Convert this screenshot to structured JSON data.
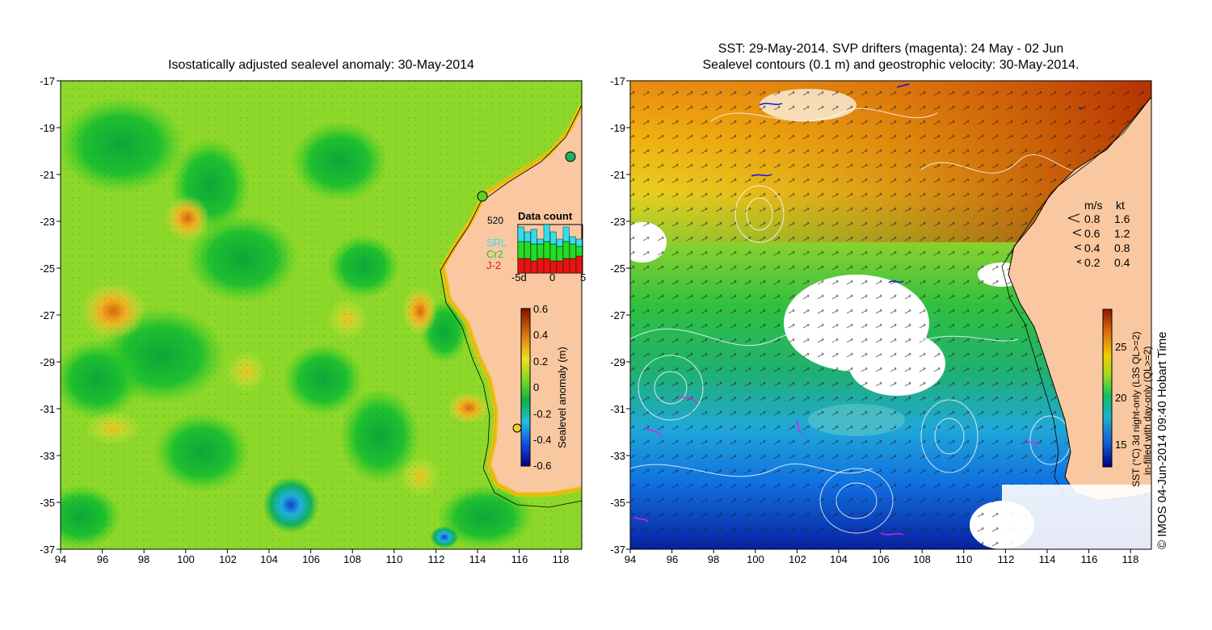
{
  "left_panel": {
    "title": "Isostatically adjusted sealevel anomaly: 30-May-2014",
    "y_ticks": [
      "-17",
      "-19",
      "-21",
      "-23",
      "-25",
      "-27",
      "-29",
      "-31",
      "-33",
      "-35",
      "-37"
    ],
    "x_ticks": [
      "94",
      "96",
      "98",
      "100",
      "102",
      "104",
      "106",
      "108",
      "110",
      "112",
      "114",
      "116",
      "118"
    ],
    "colorbar": {
      "ticks": [
        "0.6",
        "0.4",
        "0.2",
        "0",
        "-0.2",
        "-0.4",
        "-0.6"
      ],
      "label": "Sealevel anomaly (m)"
    },
    "data_count": {
      "title": "Data count",
      "max": "520",
      "missions": [
        "SRL",
        "Cr2",
        "J-2"
      ],
      "mission_colors": [
        "#33ddee",
        "#22dd22",
        "#ee1111"
      ],
      "x_labels": [
        "-5d",
        "0",
        "5"
      ],
      "bars": [
        {
          "J-2": 0.3,
          "Cr2": 0.35,
          "SRL": 0.3
        },
        {
          "J-2": 0.3,
          "Cr2": 0.35,
          "SRL": 0.2
        },
        {
          "J-2": 0.25,
          "Cr2": 0.35,
          "SRL": 0.3
        },
        {
          "J-2": 0.3,
          "Cr2": 0.3,
          "SRL": 0.1
        },
        {
          "J-2": 0.3,
          "Cr2": 0.35,
          "SRL": 0.35
        },
        {
          "J-2": 0.25,
          "Cr2": 0.35,
          "SRL": 0.25
        },
        {
          "J-2": 0.25,
          "Cr2": 0.3,
          "SRL": 0.15
        },
        {
          "J-2": 0.3,
          "Cr2": 0.35,
          "SRL": 0.3
        },
        {
          "J-2": 0.3,
          "Cr2": 0.3,
          "SRL": 0.15
        },
        {
          "J-2": 0.35,
          "Cr2": 0.2,
          "SRL": 0.15
        }
      ]
    }
  },
  "right_panel": {
    "title_line1": "SST: 29-May-2014. SVP drifters (magenta): 24 May - 02 Jun",
    "title_line2": "Sealevel contours (0.1 m) and geostrophic velocity: 30-May-2014.",
    "y_ticks": [
      "-17",
      "-19",
      "-21",
      "-23",
      "-25",
      "-27",
      "-29",
      "-31",
      "-33",
      "-35",
      "-37"
    ],
    "x_ticks": [
      "94",
      "96",
      "98",
      "100",
      "102",
      "104",
      "106",
      "108",
      "110",
      "112",
      "114",
      "116",
      "118"
    ],
    "velocity_legend": {
      "header_ms": "m/s",
      "header_kt": "kt",
      "rows": [
        {
          "ms": "0.8",
          "kt": "1.6"
        },
        {
          "ms": "0.6",
          "kt": "1.2"
        },
        {
          "ms": "0.4",
          "kt": "0.8"
        },
        {
          "ms": "0.2",
          "kt": "0.4"
        }
      ]
    },
    "colorbar": {
      "ticks": [
        "25",
        "20",
        "15"
      ],
      "label_line1": "SST (°C) 3d night-only (L3S QL>=2)",
      "label_line2": "in-filled with day-only (QL>=2)"
    },
    "credit": "© IMOS 04-Jun-2014 09:40 Hobart Time"
  },
  "colors": {
    "land": "#f9c8a0",
    "anomaly_scale": [
      "#000080",
      "#1560d8",
      "#20c0d0",
      "#10c020",
      "#c8e840",
      "#f0c020",
      "#d06010",
      "#801000"
    ],
    "sst_scale": [
      "#000080",
      "#1060d0",
      "#20b0e0",
      "#20c060",
      "#a0d020",
      "#f0c000",
      "#e07010",
      "#a02000"
    ]
  }
}
